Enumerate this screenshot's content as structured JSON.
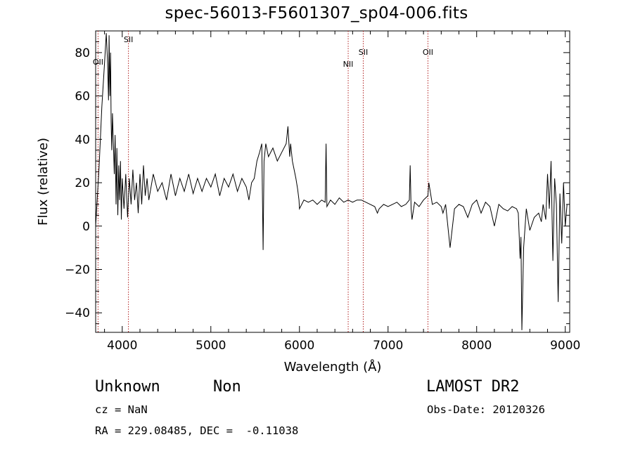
{
  "header": {
    "title": "spec-56013-F5601307_sp04-006.fits"
  },
  "info": {
    "class": "Unknown",
    "subclass": "Non",
    "survey": "LAMOST DR2",
    "cz": "cz = NaN",
    "obs_date": "Obs-Date: 20120326",
    "coords": "RA = 229.08485, DEC =  -0.11038"
  },
  "colors": {
    "line": "#000000",
    "marker": "#b22222"
  },
  "chart_data": {
    "type": "line",
    "title": "spec-56013-F5601307_sp04-006.fits",
    "xlabel": "Wavelength (Å)",
    "ylabel": "Flux (relative)",
    "xlim": [
      3700,
      9050
    ],
    "ylim": [
      -49,
      90
    ],
    "xticks": [
      4000,
      5000,
      6000,
      7000,
      8000,
      9000
    ],
    "yticks": [
      -40,
      -20,
      0,
      20,
      40,
      60,
      80
    ],
    "grid": false,
    "line_markers": [
      {
        "label": "OII",
        "x": 3727
      },
      {
        "label": "SII",
        "x": 4070
      },
      {
        "label": "NII",
        "x": 6550
      },
      {
        "label": "SII",
        "x": 6720
      },
      {
        "label": "OII",
        "x": 7450
      }
    ],
    "series": [
      {
        "x": [
          3700,
          3740,
          3770,
          3800,
          3820,
          3835,
          3845,
          3852,
          3860,
          3868,
          3875,
          3882,
          3890,
          3900,
          3910,
          3920,
          3930,
          3940,
          3950,
          3960,
          3970,
          3980,
          3990,
          4000,
          4020,
          4040,
          4060,
          4080,
          4100,
          4120,
          4140,
          4160,
          4180,
          4200,
          4220,
          4240,
          4260,
          4280,
          4300,
          4350,
          4400,
          4450,
          4500,
          4550,
          4600,
          4650,
          4700,
          4750,
          4800,
          4850,
          4900,
          4950,
          5000,
          5050,
          5100,
          5150,
          5200,
          5250,
          5300,
          5350,
          5400,
          5430,
          5460,
          5490,
          5520,
          5550,
          5575,
          5590,
          5600,
          5620,
          5650,
          5700,
          5750,
          5800,
          5850,
          5870,
          5890,
          5900,
          5920,
          5940,
          5960,
          5980,
          5995,
          6000,
          6050,
          6100,
          6150,
          6200,
          6250,
          6290,
          6300,
          6310,
          6350,
          6400,
          6450,
          6500,
          6550,
          6600,
          6650,
          6700,
          6750,
          6800,
          6850,
          6880,
          6900,
          6950,
          7000,
          7050,
          7100,
          7150,
          7200,
          7240,
          7250,
          7260,
          7270,
          7300,
          7350,
          7400,
          7450,
          7460,
          7500,
          7550,
          7600,
          7620,
          7650,
          7700,
          7750,
          7800,
          7850,
          7900,
          7950,
          8000,
          8050,
          8100,
          8150,
          8200,
          8250,
          8300,
          8350,
          8400,
          8450,
          8470,
          8490,
          8500,
          8510,
          8530,
          8560,
          8600,
          8650,
          8700,
          8730,
          8750,
          8780,
          8800,
          8820,
          8840,
          8860,
          8880,
          8900,
          8920,
          8940,
          8960,
          8980,
          9000,
          9020
        ],
        "values": [
          0,
          28,
          55,
          75,
          89,
          75,
          58,
          88,
          60,
          80,
          48,
          35,
          52,
          38,
          24,
          42,
          10,
          36,
          5,
          28,
          12,
          30,
          3,
          22,
          8,
          24,
          4,
          22,
          10,
          26,
          12,
          20,
          6,
          24,
          10,
          28,
          14,
          22,
          12,
          24,
          16,
          20,
          12,
          24,
          14,
          22,
          16,
          24,
          15,
          22,
          16,
          22,
          18,
          24,
          14,
          22,
          18,
          24,
          16,
          22,
          18,
          12,
          20,
          22,
          30,
          34,
          38,
          -11,
          30,
          38,
          32,
          36,
          30,
          34,
          38,
          46,
          32,
          38,
          30,
          26,
          22,
          17,
          12,
          8,
          12,
          11,
          12,
          10,
          12,
          11,
          38,
          9,
          12,
          10,
          13,
          11,
          12,
          11,
          12,
          12,
          11,
          10,
          9,
          6,
          8,
          10,
          9,
          10,
          11,
          9,
          10,
          12,
          28,
          8,
          3,
          11,
          9,
          12,
          14,
          20,
          10,
          11,
          9,
          6,
          10,
          -10,
          8,
          10,
          9,
          4,
          10,
          12,
          6,
          11,
          9,
          0,
          10,
          8,
          7,
          9,
          8,
          6,
          -15,
          -5,
          -48,
          -10,
          8,
          -2,
          4,
          6,
          2,
          10,
          3,
          24,
          8,
          30,
          -16,
          22,
          10,
          -35,
          15,
          -8,
          20,
          0,
          10
        ]
      }
    ]
  }
}
